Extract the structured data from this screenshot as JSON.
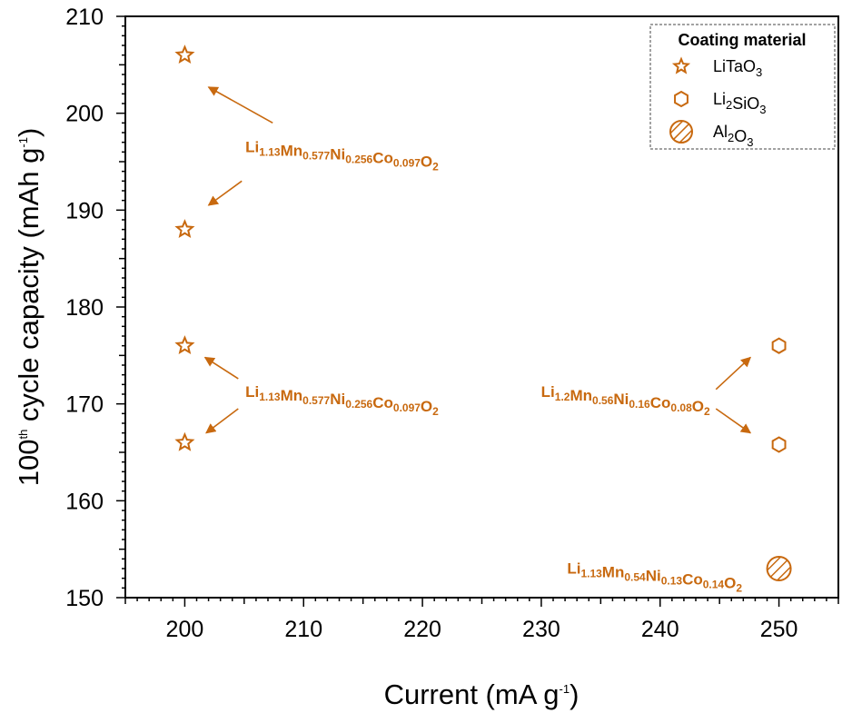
{
  "chart_data": {
    "type": "scatter",
    "xlabel": "Current (mA g",
    "xlabel_sup": "-1",
    "xlabel_end": ")",
    "ylabel": "100",
    "ylabel_sup": "th",
    "ylabel_mid": " cycle capacity (mAh g",
    "ylabel_sup2": "-1",
    "ylabel_end": ")",
    "xlim": [
      195,
      255
    ],
    "ylim": [
      150,
      210
    ],
    "xticks": [
      200,
      210,
      220,
      230,
      240,
      250
    ],
    "yticks": [
      150,
      160,
      170,
      180,
      190,
      200,
      210
    ],
    "grid": false,
    "colors": {
      "marker": "#c8690f",
      "text": "#c8690f"
    },
    "legend": {
      "title": "Coating material",
      "position": "top-right",
      "entries": [
        {
          "marker": "star",
          "text": "LiTaO",
          "sub": "3"
        },
        {
          "marker": "hexagon",
          "text": "Li",
          "sub": "2",
          "text2": "SiO",
          "sub2": "3"
        },
        {
          "marker": "hatched-circle",
          "text": "Al",
          "sub": "2",
          "text2": "O",
          "sub2": "3"
        }
      ]
    },
    "series": [
      {
        "marker": "star",
        "points": [
          {
            "x": 200,
            "y": 206
          },
          {
            "x": 200,
            "y": 188
          },
          {
            "x": 200,
            "y": 176
          },
          {
            "x": 200,
            "y": 166
          }
        ]
      },
      {
        "marker": "hexagon",
        "points": [
          {
            "x": 250,
            "y": 176
          },
          {
            "x": 250,
            "y": 165.8
          }
        ]
      },
      {
        "marker": "hatched-circle",
        "points": [
          {
            "x": 250,
            "y": 153
          }
        ]
      }
    ],
    "annotations": [
      {
        "parts": [
          [
            "Li",
            ""
          ],
          [
            "",
            "1.13"
          ],
          [
            "Mn",
            ""
          ],
          [
            "",
            "0.577"
          ],
          [
            "Ni",
            ""
          ],
          [
            "",
            "0.256"
          ],
          [
            "Co",
            ""
          ],
          [
            "",
            "0.097"
          ],
          [
            "O",
            ""
          ],
          [
            "",
            "2"
          ]
        ],
        "x": 205.1,
        "y": 196.0,
        "anchor": "start",
        "arrows": [
          {
            "from": [
              207.4,
              199.0
            ],
            "to": [
              202.0,
              202.7
            ]
          },
          {
            "from": [
              204.8,
              193.0
            ],
            "to": [
              202.0,
              190.5
            ]
          }
        ]
      },
      {
        "parts": [
          [
            "Li",
            ""
          ],
          [
            "",
            "1.13"
          ],
          [
            "Mn",
            ""
          ],
          [
            "",
            "0.577"
          ],
          [
            "Ni",
            ""
          ],
          [
            "",
            "0.256"
          ],
          [
            "Co",
            ""
          ],
          [
            "",
            "0.097"
          ],
          [
            "O",
            ""
          ],
          [
            "",
            "2"
          ]
        ],
        "x": 205.1,
        "y": 170.7,
        "anchor": "start",
        "arrows": [
          {
            "from": [
              204.5,
              172.6
            ],
            "to": [
              201.7,
              174.8
            ]
          },
          {
            "from": [
              204.5,
              169.5
            ],
            "to": [
              201.8,
              167.0
            ]
          }
        ]
      },
      {
        "parts": [
          [
            "Li",
            ""
          ],
          [
            "",
            "1.2"
          ],
          [
            "Mn",
            ""
          ],
          [
            "",
            "0.56"
          ],
          [
            "Ni",
            ""
          ],
          [
            "",
            "0.16"
          ],
          [
            "Co",
            ""
          ],
          [
            "",
            "0.08"
          ],
          [
            "O",
            ""
          ],
          [
            "",
            "2"
          ]
        ],
        "x": 244.2,
        "y": 170.7,
        "anchor": "end",
        "arrows": [
          {
            "from": [
              244.7,
              171.5
            ],
            "to": [
              247.6,
              174.8
            ]
          },
          {
            "from": [
              244.7,
              169.5
            ],
            "to": [
              247.6,
              167.0
            ]
          }
        ]
      },
      {
        "parts": [
          [
            "Li",
            ""
          ],
          [
            "",
            "1.13"
          ],
          [
            "Mn",
            ""
          ],
          [
            "",
            "0.54"
          ],
          [
            "Ni",
            ""
          ],
          [
            "",
            "0.13"
          ],
          [
            "Co",
            ""
          ],
          [
            "",
            "0.14"
          ],
          [
            "O",
            ""
          ],
          [
            "",
            "2"
          ]
        ],
        "x": 246.9,
        "y": 152.5,
        "anchor": "end",
        "arrows": []
      }
    ]
  }
}
